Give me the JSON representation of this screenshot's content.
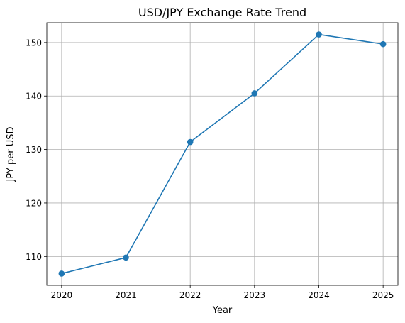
{
  "chart_data": {
    "type": "line",
    "title": "USD/JPY Exchange Rate Trend",
    "xlabel": "Year",
    "ylabel": "JPY per USD",
    "x": [
      2020,
      2021,
      2022,
      2023,
      2024,
      2025
    ],
    "x_tick_labels": [
      "2020",
      "2021",
      "2022",
      "2023",
      "2024",
      "2025"
    ],
    "series": [
      {
        "values": [
          106.8,
          109.8,
          131.4,
          140.5,
          151.5,
          149.7
        ],
        "color": "#1f77b4",
        "marker": "circle"
      }
    ],
    "xlim": [
      2019.77,
      2025.23
    ],
    "ylim": [
      104.6,
      153.7
    ],
    "y_ticks": [
      110,
      120,
      130,
      140,
      150
    ],
    "y_tick_labels": [
      "110",
      "120",
      "130",
      "140",
      "150"
    ],
    "grid": true
  }
}
